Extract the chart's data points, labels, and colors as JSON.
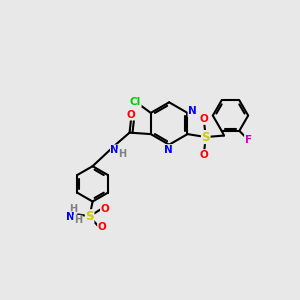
{
  "bg": "#e8e8e8",
  "colors": {
    "C": "#000000",
    "N": "#0000ff",
    "O": "#ff0000",
    "S": "#cccc00",
    "F": "#cc00cc",
    "Cl": "#00cc00",
    "H": "#808080"
  },
  "figsize": [
    3.0,
    3.0
  ],
  "dpi": 100
}
